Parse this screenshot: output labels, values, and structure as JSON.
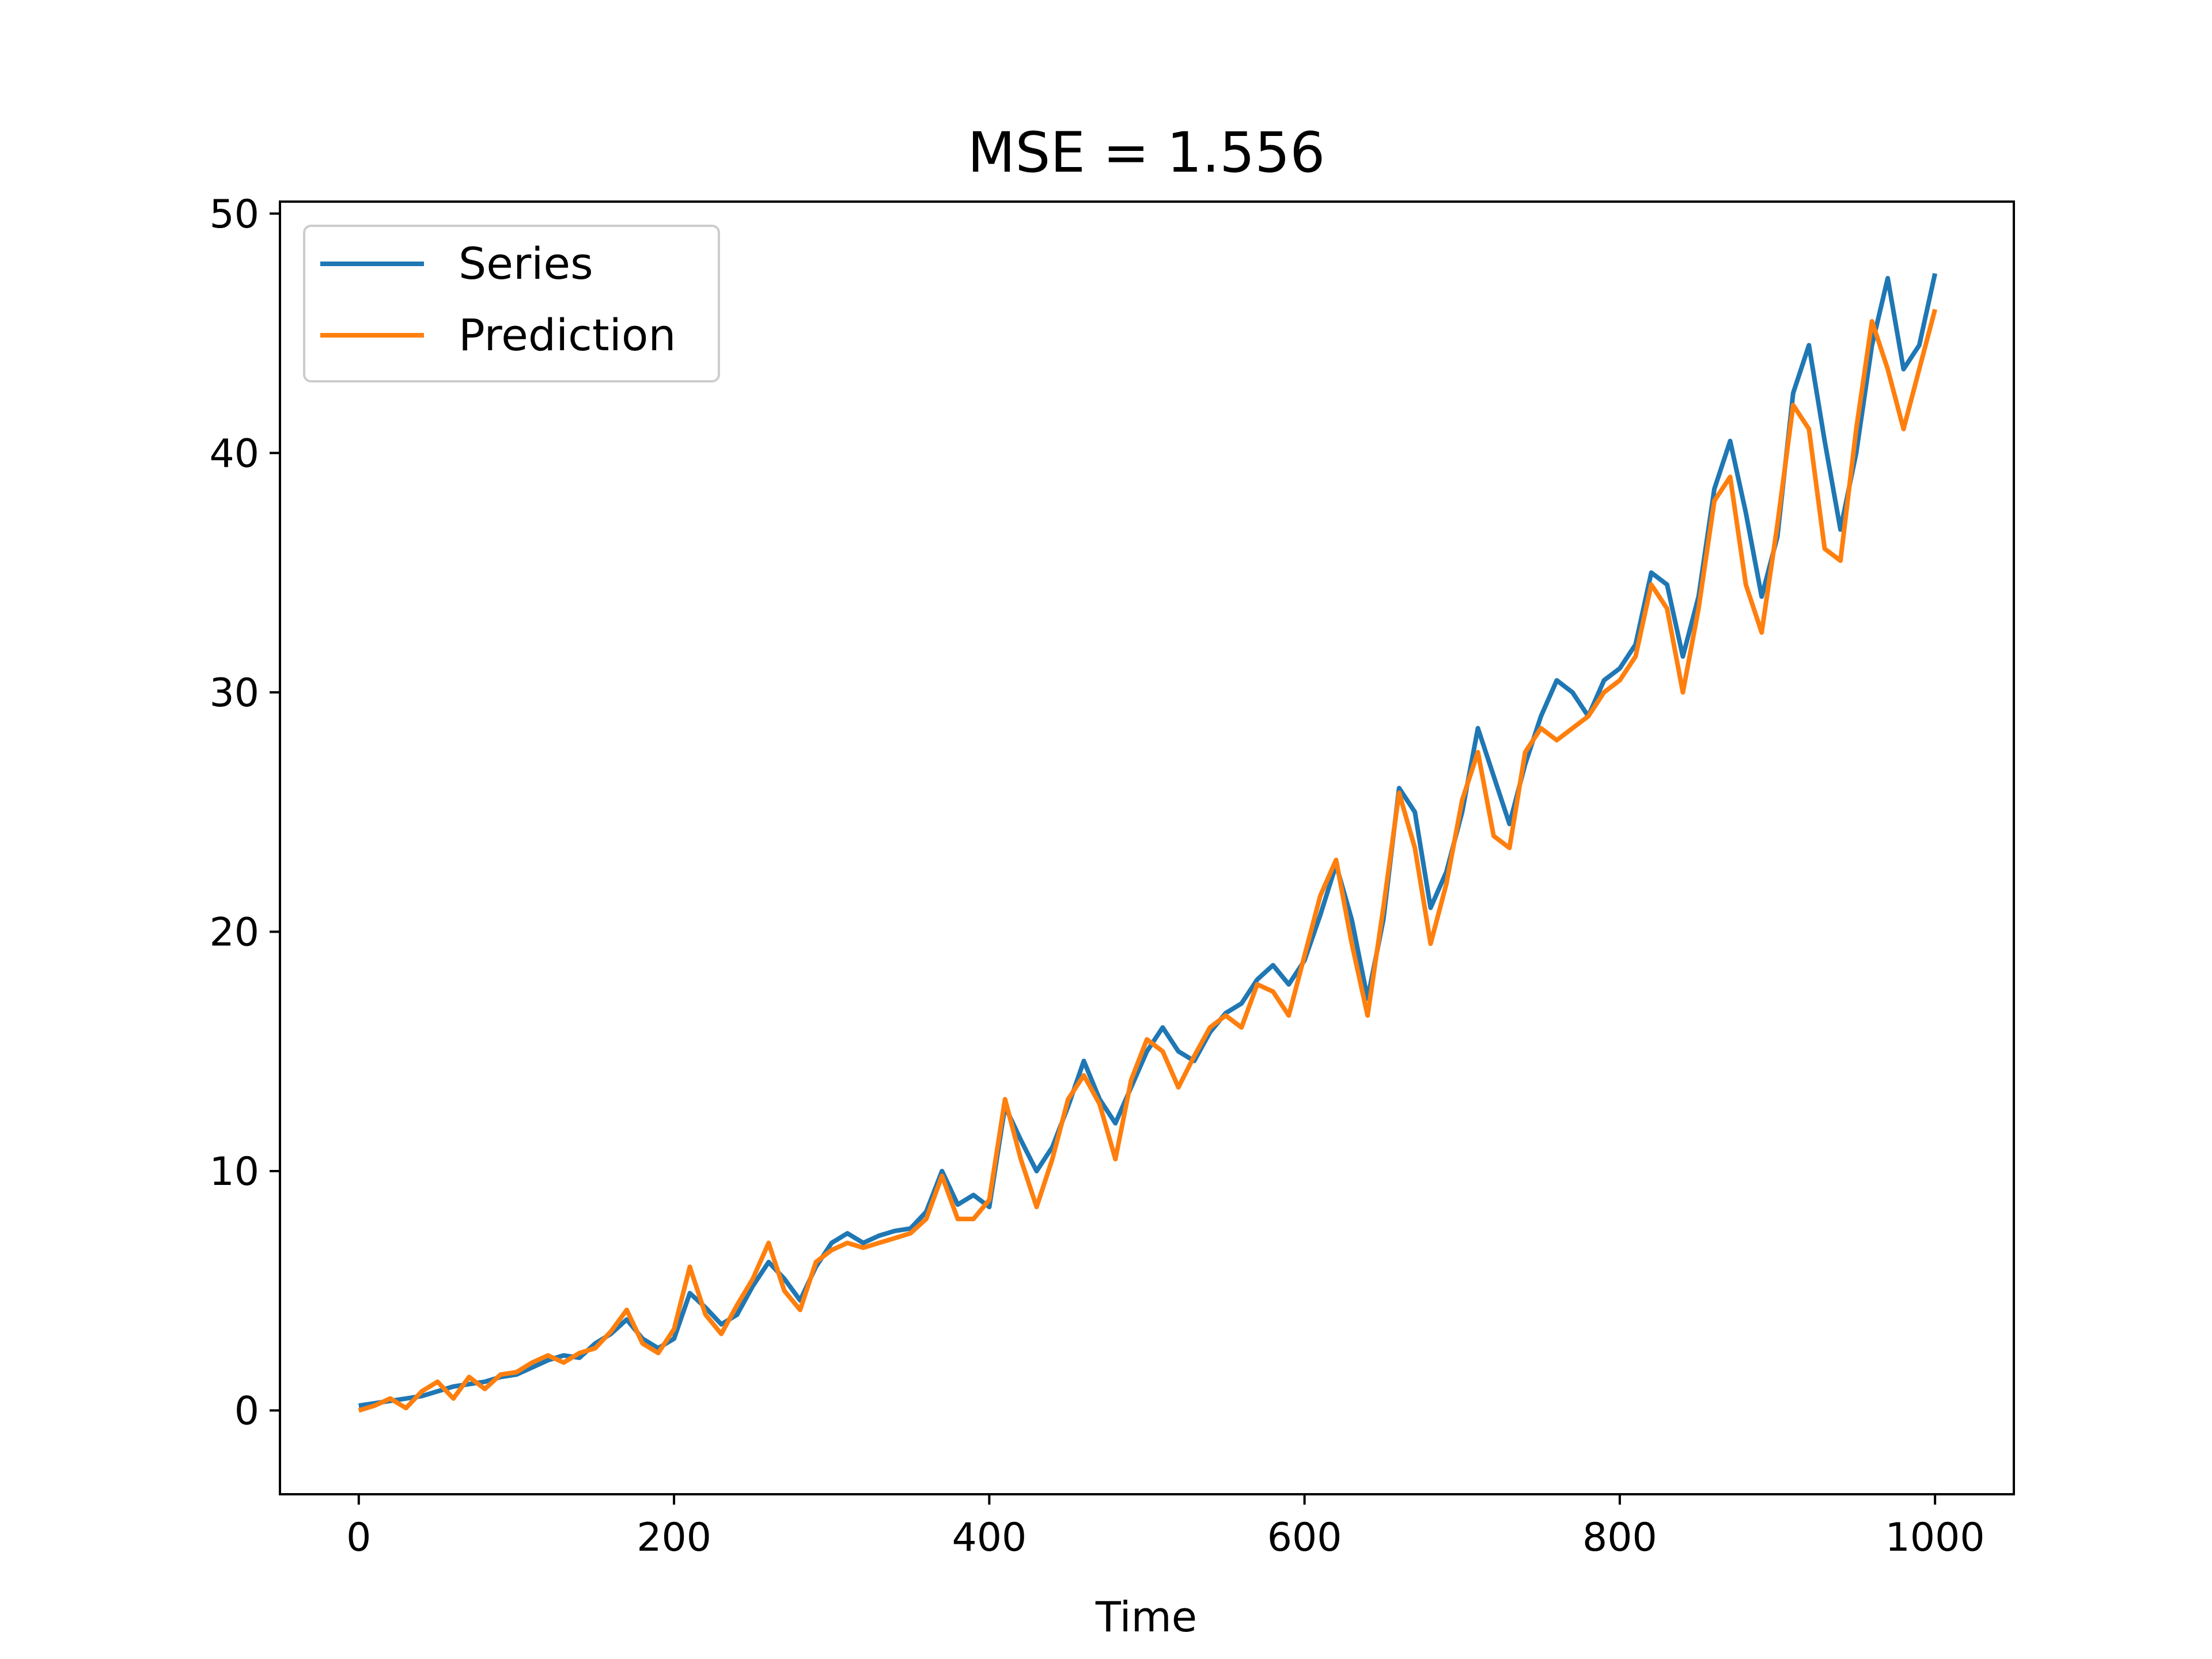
{
  "chart_data": {
    "type": "line",
    "title": "MSE = 1.556",
    "xlabel": "Time",
    "ylabel": "",
    "xlim": [
      -50,
      1050
    ],
    "ylim": [
      -3.5,
      50.5
    ],
    "xticks": [
      0,
      200,
      400,
      600,
      800,
      1000
    ],
    "yticks": [
      0,
      10,
      20,
      30,
      40,
      50
    ],
    "grid": false,
    "legend_position": "top-left",
    "series": [
      {
        "name": "Series",
        "color": "#1f77b4",
        "x": [
          0,
          10,
          20,
          30,
          40,
          50,
          60,
          70,
          80,
          90,
          100,
          110,
          120,
          130,
          140,
          150,
          160,
          170,
          180,
          190,
          200,
          210,
          220,
          230,
          240,
          250,
          260,
          270,
          280,
          290,
          300,
          310,
          320,
          330,
          340,
          350,
          360,
          370,
          380,
          390,
          400,
          410,
          420,
          430,
          440,
          450,
          460,
          470,
          480,
          490,
          500,
          510,
          520,
          530,
          540,
          550,
          560,
          570,
          580,
          590,
          600,
          610,
          620,
          630,
          640,
          650,
          660,
          670,
          680,
          690,
          700,
          710,
          720,
          730,
          740,
          750,
          760,
          770,
          780,
          790,
          800,
          810,
          820,
          830,
          840,
          850,
          860,
          870,
          880,
          890,
          900,
          910,
          920,
          930,
          940,
          950,
          960,
          970,
          980,
          990,
          1000
        ],
        "y": [
          0.2,
          0.3,
          0.4,
          0.5,
          0.6,
          0.8,
          1.0,
          1.1,
          1.2,
          1.4,
          1.5,
          1.8,
          2.1,
          2.3,
          2.2,
          2.8,
          3.2,
          3.8,
          3.0,
          2.6,
          3.0,
          4.9,
          4.3,
          3.6,
          4.0,
          5.2,
          6.2,
          5.5,
          4.6,
          6.0,
          7.0,
          7.4,
          7.0,
          7.3,
          7.5,
          7.6,
          8.3,
          10.0,
          8.6,
          9.0,
          8.5,
          12.7,
          11.3,
          10.0,
          11.0,
          12.7,
          14.6,
          13.0,
          12.0,
          13.5,
          15.0,
          16.0,
          15.0,
          14.6,
          15.8,
          16.6,
          17.0,
          18.0,
          18.6,
          17.8,
          18.8,
          20.7,
          22.8,
          20.5,
          17.2,
          20.5,
          26.0,
          25.0,
          21.0,
          22.5,
          25.0,
          28.5,
          26.5,
          24.5,
          27.0,
          29.0,
          30.5,
          30.0,
          29.0,
          30.5,
          31.0,
          32.0,
          35.0,
          34.5,
          31.5,
          34.0,
          38.5,
          40.5,
          37.5,
          34.0,
          36.5,
          42.5,
          44.5,
          40.5,
          36.8,
          40.0,
          44.5,
          47.3,
          43.5,
          44.5,
          47.5
        ]
      },
      {
        "name": "Prediction",
        "color": "#ff7f0e",
        "x": [
          0,
          10,
          20,
          30,
          40,
          50,
          60,
          70,
          80,
          90,
          100,
          110,
          120,
          130,
          140,
          150,
          160,
          170,
          180,
          190,
          200,
          210,
          220,
          230,
          240,
          250,
          260,
          270,
          280,
          290,
          300,
          310,
          320,
          330,
          340,
          350,
          360,
          370,
          380,
          390,
          400,
          410,
          420,
          430,
          440,
          450,
          460,
          470,
          480,
          490,
          500,
          510,
          520,
          530,
          540,
          550,
          560,
          570,
          580,
          590,
          600,
          610,
          620,
          630,
          640,
          650,
          660,
          670,
          680,
          690,
          700,
          710,
          720,
          730,
          740,
          750,
          760,
          770,
          780,
          790,
          800,
          810,
          820,
          830,
          840,
          850,
          860,
          870,
          880,
          890,
          900,
          910,
          920,
          930,
          940,
          950,
          960,
          970,
          980,
          990,
          1000
        ],
        "y": [
          0.0,
          0.2,
          0.5,
          0.1,
          0.8,
          1.2,
          0.5,
          1.4,
          0.9,
          1.5,
          1.6,
          2.0,
          2.3,
          2.0,
          2.4,
          2.6,
          3.3,
          4.2,
          2.8,
          2.4,
          3.4,
          6.0,
          4.0,
          3.2,
          4.4,
          5.5,
          7.0,
          5.0,
          4.2,
          6.2,
          6.7,
          7.0,
          6.8,
          7.0,
          7.2,
          7.4,
          8.0,
          9.8,
          8.0,
          8.0,
          8.8,
          13.0,
          10.5,
          8.5,
          10.5,
          13.0,
          14.0,
          12.8,
          10.5,
          13.8,
          15.5,
          15.0,
          13.5,
          14.8,
          16.0,
          16.5,
          16.0,
          17.8,
          17.5,
          16.5,
          19.0,
          21.5,
          23.0,
          19.5,
          16.5,
          21.0,
          25.8,
          23.5,
          19.5,
          22.0,
          25.5,
          27.5,
          24.0,
          23.5,
          27.5,
          28.5,
          28.0,
          28.5,
          29.0,
          30.0,
          30.5,
          31.5,
          34.5,
          33.5,
          30.0,
          33.5,
          38.0,
          39.0,
          34.5,
          32.5,
          37.0,
          42.0,
          41.0,
          36.0,
          35.5,
          41.0,
          45.5,
          43.5,
          41.0,
          43.5,
          46.0
        ]
      }
    ]
  }
}
